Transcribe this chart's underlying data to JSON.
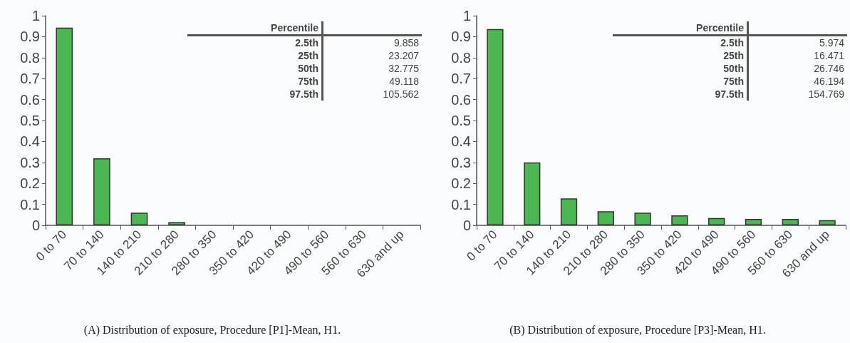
{
  "chart_data": [
    {
      "type": "bar",
      "categories": [
        "0 to 70",
        "70 to 140",
        "140 to 210",
        "210 to 280",
        "280 to 350",
        "350 to 420",
        "420 to 490",
        "490 to 560",
        "560 to 630",
        "630 and up"
      ],
      "values": [
        0.943,
        0.32,
        0.06,
        0.015,
        0,
        0,
        0,
        0,
        0,
        0
      ],
      "color": "#4cb652",
      "ylim": [
        0,
        1
      ],
      "yticks": [
        0,
        0.1,
        0.2,
        0.3,
        0.4,
        0.5,
        0.6,
        0.7,
        0.8,
        0.9,
        1
      ],
      "grid": false,
      "annotations": [
        "(A) Distribution of exposure, Procedure [P1]-Mean, H1.",
        "Percentile",
        "2.5th",
        "9.858",
        "25th",
        "23.207",
        "50th",
        "32.775",
        "75th",
        "49.118",
        "97.5th",
        "105.562"
      ]
    },
    {
      "type": "bar",
      "categories": [
        "0 to 70",
        "70 to 140",
        "140 to 210",
        "210 to 280",
        "280 to 350",
        "350 to 420",
        "420 to 490",
        "490 to 560",
        "560 to 630",
        "630 and up"
      ],
      "values": [
        0.936,
        0.3,
        0.128,
        0.067,
        0.06,
        0.048,
        0.035,
        0.031,
        0.031,
        0.025
      ],
      "color": "#4cb652",
      "ylim": [
        0,
        1
      ],
      "yticks": [
        0,
        0.1,
        0.2,
        0.3,
        0.4,
        0.5,
        0.6,
        0.7,
        0.8,
        0.9,
        1
      ],
      "grid": false,
      "annotations": [
        "(B) Distribution of exposure, Procedure [P3]-Mean, H1.",
        "Percentile",
        "2.5th",
        "5.974",
        "25th",
        "16.471",
        "50th",
        "26.746",
        "75th",
        "46.194",
        "97.5th",
        "154.769"
      ]
    }
  ]
}
